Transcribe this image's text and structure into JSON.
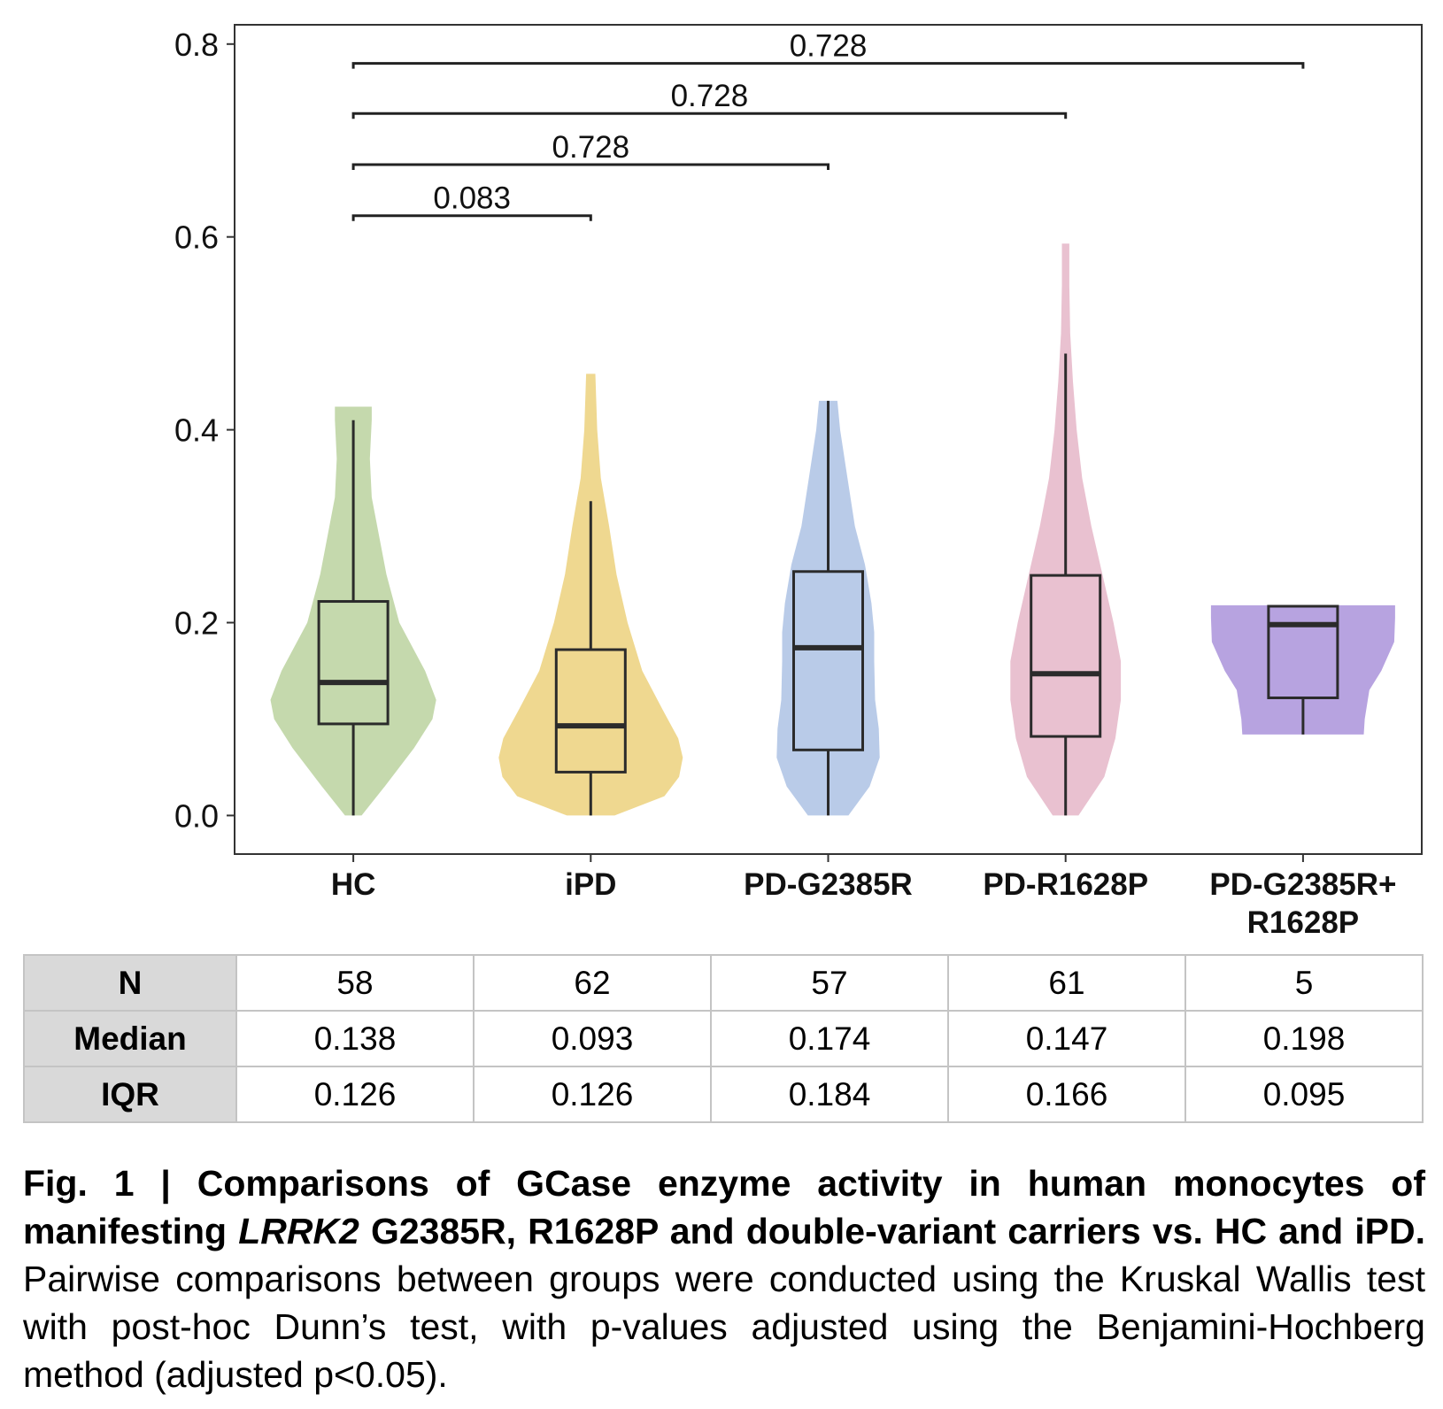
{
  "chart_data": {
    "type": "violin",
    "title": "",
    "xlabel": "",
    "ylabel": "",
    "ylim": [
      -0.04,
      0.82
    ],
    "yticks": [
      "0.0",
      "0.2",
      "0.4",
      "0.6",
      "0.8"
    ],
    "ytick_values": [
      0.0,
      0.2,
      0.4,
      0.6,
      0.8
    ],
    "categories": [
      "HC",
      "iPD",
      "PD-G2385R",
      "PD-R1628P",
      "PD-G2385R+\nR1628P"
    ],
    "colors": [
      "#c5d9ad",
      "#efd890",
      "#b9cbe8",
      "#e9c1d0",
      "#b7a3e0"
    ],
    "groups": [
      {
        "name": "HC",
        "min": 0.0,
        "q1": 0.095,
        "median": 0.138,
        "q3": 0.222,
        "max": 0.41,
        "violin": [
          [
            0.0,
            0.09
          ],
          [
            0.03,
            0.34
          ],
          [
            0.07,
            0.66
          ],
          [
            0.1,
            0.86
          ],
          [
            0.12,
            0.9
          ],
          [
            0.15,
            0.78
          ],
          [
            0.2,
            0.5
          ],
          [
            0.25,
            0.36
          ],
          [
            0.29,
            0.28
          ],
          [
            0.33,
            0.2
          ],
          [
            0.37,
            0.18
          ],
          [
            0.41,
            0.2
          ],
          [
            0.424,
            0.2
          ]
        ]
      },
      {
        "name": "iPD",
        "min": 0.0,
        "q1": 0.045,
        "median": 0.093,
        "q3": 0.172,
        "max": 0.326,
        "violin": [
          [
            0.0,
            0.26
          ],
          [
            0.02,
            0.8
          ],
          [
            0.04,
            0.96
          ],
          [
            0.06,
            1.0
          ],
          [
            0.08,
            0.95
          ],
          [
            0.11,
            0.78
          ],
          [
            0.15,
            0.56
          ],
          [
            0.2,
            0.4
          ],
          [
            0.25,
            0.28
          ],
          [
            0.3,
            0.2
          ],
          [
            0.35,
            0.11
          ],
          [
            0.4,
            0.07
          ],
          [
            0.458,
            0.05
          ]
        ]
      },
      {
        "name": "PD-G2385R",
        "min": 0.0,
        "q1": 0.068,
        "median": 0.174,
        "q3": 0.253,
        "max": 0.43,
        "violin": [
          [
            0.0,
            0.22
          ],
          [
            0.03,
            0.45
          ],
          [
            0.06,
            0.56
          ],
          [
            0.09,
            0.55
          ],
          [
            0.12,
            0.51
          ],
          [
            0.16,
            0.5
          ],
          [
            0.19,
            0.5
          ],
          [
            0.22,
            0.47
          ],
          [
            0.26,
            0.4
          ],
          [
            0.3,
            0.29
          ],
          [
            0.35,
            0.21
          ],
          [
            0.4,
            0.13
          ],
          [
            0.43,
            0.1
          ]
        ]
      },
      {
        "name": "PD-R1628P",
        "min": 0.0,
        "q1": 0.082,
        "median": 0.147,
        "q3": 0.249,
        "max": 0.479,
        "violin": [
          [
            0.0,
            0.14
          ],
          [
            0.04,
            0.42
          ],
          [
            0.08,
            0.54
          ],
          [
            0.12,
            0.6
          ],
          [
            0.16,
            0.6
          ],
          [
            0.2,
            0.52
          ],
          [
            0.25,
            0.4
          ],
          [
            0.3,
            0.28
          ],
          [
            0.35,
            0.18
          ],
          [
            0.4,
            0.12
          ],
          [
            0.45,
            0.08
          ],
          [
            0.5,
            0.05
          ],
          [
            0.55,
            0.04
          ],
          [
            0.593,
            0.04
          ]
        ]
      },
      {
        "name": "PD-G2385R+\nR1628P",
        "min": 0.084,
        "q1": 0.122,
        "median": 0.198,
        "q3": 0.217,
        "max": 0.217,
        "violin": [
          [
            0.084,
            0.66
          ],
          [
            0.1,
            0.67
          ],
          [
            0.13,
            0.72
          ],
          [
            0.15,
            0.85
          ],
          [
            0.18,
            0.99
          ],
          [
            0.205,
            1.0
          ],
          [
            0.218,
            1.0
          ]
        ]
      }
    ],
    "comparisons": [
      {
        "label": "0.728",
        "from": 0,
        "to": 4,
        "y": 0.78
      },
      {
        "label": "0.728",
        "from": 0,
        "to": 3,
        "y": 0.728
      },
      {
        "label": "0.728",
        "from": 0,
        "to": 2,
        "y": 0.675
      },
      {
        "label": "0.083",
        "from": 0,
        "to": 1,
        "y": 0.622
      }
    ]
  },
  "table": {
    "rows": [
      {
        "label": "N",
        "values": [
          "58",
          "62",
          "57",
          "61",
          "5"
        ]
      },
      {
        "label": "Median",
        "values": [
          "0.138",
          "0.093",
          "0.174",
          "0.147",
          "0.198"
        ]
      },
      {
        "label": "IQR",
        "values": [
          "0.126",
          "0.126",
          "0.184",
          "0.166",
          "0.095"
        ]
      }
    ]
  },
  "caption": {
    "bold_1": "Fig. 1 | Comparisons of GCase enzyme activity in human monocytes of manifesting ",
    "italic": "LRRK2",
    "bold_2": " G2385R, R1628P and double-variant carriers vs. HC and iPD.",
    "normal": " Pairwise comparisons between groups were conducted using the Kruskal Wallis test with post-hoc Dunn’s test, with p-values adjusted using the Benjamini-Hochberg method (adjusted p<0.05)."
  }
}
